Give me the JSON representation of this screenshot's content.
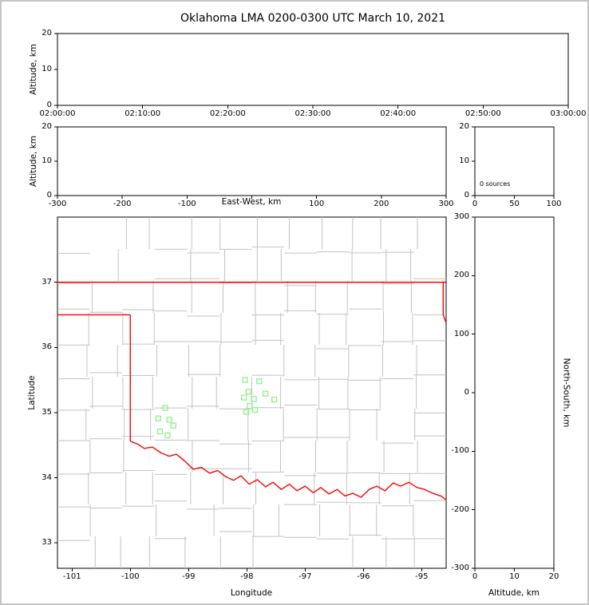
{
  "title": "Oklahoma LMA 0200-0300 UTC March 10, 2021",
  "colors": {
    "state_border": "#ff0000",
    "county_lines": "#c3c3c3",
    "station_marker": "#90ee90",
    "axis": "#000000",
    "frame": "#c4c4c4",
    "background": "#ffffff"
  },
  "chart_data": {
    "type": "scatter",
    "title": "Oklahoma LMA 0200-0300 UTC March 10, 2021",
    "grid": "off",
    "legend": "none",
    "panels": {
      "time_height": {
        "name": "altitude vs time",
        "ylabel": "Altitude, km",
        "ylim": [
          0,
          20
        ],
        "yticks": [
          0,
          10,
          20
        ],
        "xticks": [
          "02:00:00",
          "02:10:00",
          "02:20:00",
          "02:30:00",
          "02:40:00",
          "02:50:00",
          "03:00:00"
        ],
        "points": []
      },
      "ew_height": {
        "name": "altitude vs east-west distance",
        "xlabel": "East-West, km",
        "xlim": [
          -300,
          300
        ],
        "xticks": [
          -300,
          -200,
          -100,
          0,
          100,
          200,
          300
        ],
        "ylabel": "Altitude, km",
        "ylim": [
          0,
          20
        ],
        "yticks": [
          0,
          10,
          20
        ],
        "points": []
      },
      "altitude_histogram": {
        "name": "source count vs altitude",
        "annotation": "0 sources",
        "xlim": [
          0,
          100
        ],
        "xticks": [
          0,
          50,
          100
        ],
        "ylim": [
          0,
          20
        ],
        "yticks": [
          0,
          10,
          20
        ],
        "points": []
      },
      "plan_view": {
        "name": "plan view map",
        "xlabel": "Longitude",
        "ylabel": "Latitude",
        "xlim": [
          -101.25,
          -94.58
        ],
        "xticks": [
          -101,
          -100,
          -99,
          -98,
          -97,
          -96,
          -95
        ],
        "ylim": [
          32.61,
          38.0
        ],
        "yticks": [
          33,
          34,
          35,
          36,
          37
        ],
        "lma_stations": [
          [
            -98.03,
            35.5
          ],
          [
            -97.79,
            35.48
          ],
          [
            -97.97,
            35.32
          ],
          [
            -97.68,
            35.29
          ],
          [
            -98.05,
            35.23
          ],
          [
            -97.88,
            35.21
          ],
          [
            -97.53,
            35.2
          ],
          [
            -97.95,
            35.1
          ],
          [
            -98.01,
            35.01
          ],
          [
            -97.86,
            35.04
          ],
          [
            -99.4,
            35.07
          ],
          [
            -99.52,
            34.91
          ],
          [
            -99.33,
            34.89
          ],
          [
            -99.26,
            34.8
          ],
          [
            -99.49,
            34.71
          ],
          [
            -99.36,
            34.65
          ]
        ],
        "points": []
      },
      "ns_height": {
        "name": "north-south distance vs altitude",
        "xlabel": "Altitude, km",
        "xlim": [
          0,
          20
        ],
        "xticks": [
          0,
          10,
          20
        ],
        "ylabel": "North-South, km",
        "ylim": [
          -300,
          300
        ],
        "yticks": [
          300,
          200,
          100,
          0,
          -100,
          -200,
          -300
        ],
        "points": []
      }
    },
    "oklahoma_border": {
      "north_latitude": 37.0,
      "panhandle_south_latitude": 36.5,
      "west_longitude": -100.0,
      "west_border_south_latitude": 34.56,
      "northeast_corner_longitude": -94.63,
      "northeast_step_latitude": 36.5,
      "red_river": [
        [
          -100.0,
          34.56
        ],
        [
          -99.88,
          34.52
        ],
        [
          -99.76,
          34.45
        ],
        [
          -99.62,
          34.47
        ],
        [
          -99.47,
          34.38
        ],
        [
          -99.33,
          34.33
        ],
        [
          -99.21,
          34.36
        ],
        [
          -99.06,
          34.25
        ],
        [
          -98.92,
          34.13
        ],
        [
          -98.78,
          34.16
        ],
        [
          -98.64,
          34.07
        ],
        [
          -98.5,
          34.11
        ],
        [
          -98.37,
          34.02
        ],
        [
          -98.23,
          33.96
        ],
        [
          -98.1,
          34.03
        ],
        [
          -97.96,
          33.9
        ],
        [
          -97.82,
          33.97
        ],
        [
          -97.68,
          33.86
        ],
        [
          -97.55,
          33.93
        ],
        [
          -97.41,
          33.82
        ],
        [
          -97.27,
          33.9
        ],
        [
          -97.14,
          33.8
        ],
        [
          -97.0,
          33.87
        ],
        [
          -96.86,
          33.77
        ],
        [
          -96.73,
          33.85
        ],
        [
          -96.59,
          33.75
        ],
        [
          -96.45,
          33.82
        ],
        [
          -96.32,
          33.72
        ],
        [
          -96.18,
          33.76
        ],
        [
          -96.04,
          33.7
        ],
        [
          -95.9,
          33.82
        ],
        [
          -95.77,
          33.87
        ],
        [
          -95.63,
          33.8
        ],
        [
          -95.49,
          33.92
        ],
        [
          -95.36,
          33.87
        ],
        [
          -95.22,
          33.93
        ],
        [
          -95.08,
          33.85
        ],
        [
          -94.95,
          33.82
        ],
        [
          -94.81,
          33.76
        ],
        [
          -94.67,
          33.72
        ],
        [
          -94.58,
          33.66
        ]
      ]
    }
  }
}
